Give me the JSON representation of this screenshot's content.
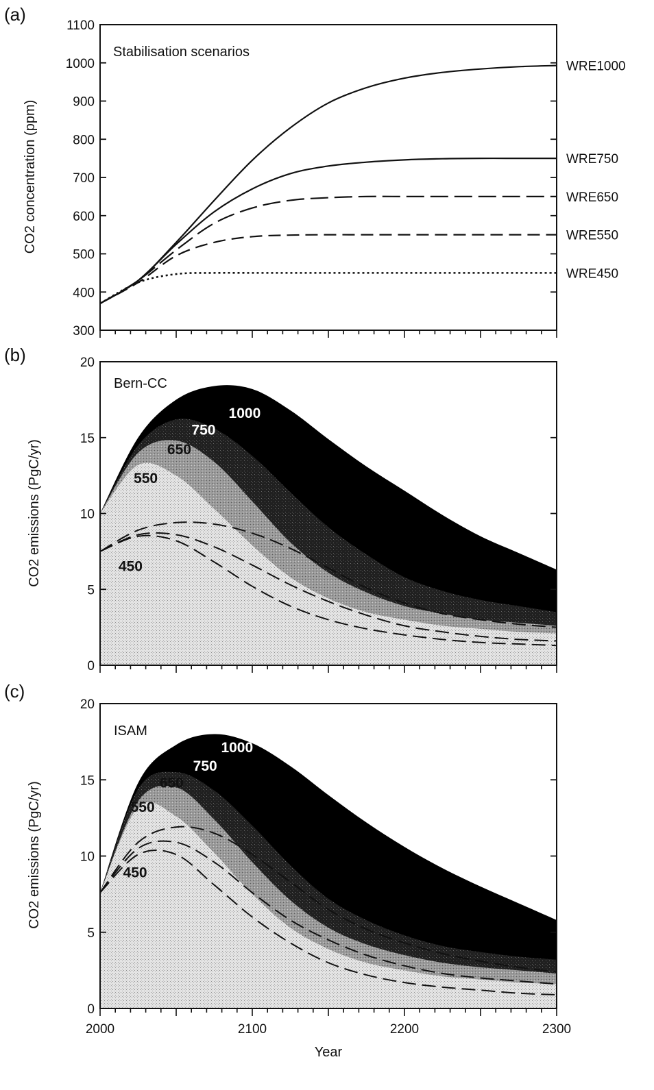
{
  "chart_data": [
    {
      "id": "a",
      "type": "line",
      "panel_label": "(a)",
      "inner_label": "Stabilisation scenarios",
      "title": "",
      "ylabel": "CO2 concentration (ppm)",
      "xlabel": "",
      "xlim": [
        2000,
        2300
      ],
      "ylim": [
        300,
        1100
      ],
      "yticks": [
        300,
        400,
        500,
        600,
        700,
        800,
        900,
        1000,
        1100
      ],
      "xticks": [
        2000,
        2100,
        2200,
        2300
      ],
      "grid": false,
      "legend": "none",
      "x": [
        2000,
        2025,
        2050,
        2075,
        2100,
        2125,
        2150,
        2175,
        2200,
        2225,
        2250,
        2275,
        2300
      ],
      "series": [
        {
          "name": "WRE1000",
          "style": "solid",
          "values": [
            370,
            430,
            530,
            640,
            745,
            830,
            895,
            935,
            960,
            975,
            984,
            990,
            993
          ]
        },
        {
          "name": "WRE750",
          "style": "solid",
          "values": [
            370,
            430,
            525,
            610,
            670,
            710,
            730,
            740,
            746,
            749,
            750,
            750,
            750
          ]
        },
        {
          "name": "WRE650",
          "style": "long-dash",
          "values": [
            370,
            430,
            510,
            580,
            620,
            640,
            647,
            650,
            650,
            650,
            650,
            650,
            650
          ]
        },
        {
          "name": "WRE550",
          "style": "medium-dash",
          "values": [
            370,
            425,
            495,
            530,
            545,
            549,
            550,
            550,
            550,
            550,
            550,
            550,
            550
          ]
        },
        {
          "name": "WRE450",
          "style": "dotted",
          "values": [
            370,
            425,
            447,
            450,
            450,
            450,
            450,
            450,
            450,
            450,
            450,
            450,
            450
          ]
        }
      ]
    },
    {
      "id": "b",
      "type": "area",
      "panel_label": "(b)",
      "inner_label": "Bern-CC",
      "title": "",
      "ylabel": "CO2 emissions (PgC/yr)",
      "xlabel": "",
      "xlim": [
        2000,
        2300
      ],
      "ylim": [
        0,
        20
      ],
      "yticks": [
        0,
        5,
        10,
        15,
        20
      ],
      "xticks": [
        2000,
        2100,
        2200,
        2300
      ],
      "grid": false,
      "legend": "none",
      "x": [
        2000,
        2025,
        2050,
        2075,
        2100,
        2125,
        2150,
        2175,
        2200,
        2225,
        2250,
        2275,
        2300
      ],
      "bands": [
        {
          "name": "1000",
          "color": "#000000",
          "upper": [
            10,
            15,
            17.5,
            18.4,
            18.2,
            16.8,
            14.9,
            13.1,
            11.5,
            9.9,
            8.5,
            7.4,
            6.3
          ]
        },
        {
          "name": "750",
          "color": "#2e2e2e",
          "upper": [
            10,
            14.5,
            16.2,
            15.6,
            13.8,
            11.4,
            9.1,
            7.3,
            5.8,
            4.9,
            4.3,
            3.9,
            3.5
          ]
        },
        {
          "name": "650",
          "color": "#8a8a8a",
          "upper": [
            10,
            14,
            14.8,
            13.4,
            10.8,
            8.1,
            6.1,
            4.8,
            3.9,
            3.4,
            3.0,
            2.8,
            2.6
          ]
        },
        {
          "name": "550",
          "color": "#c6c6c6",
          "upper": [
            10,
            13.2,
            12.5,
            10.3,
            7.9,
            5.8,
            4.4,
            3.5,
            3.0,
            2.6,
            2.4,
            2.2,
            2.1
          ]
        }
      ],
      "dashed_lines": [
        {
          "name": "",
          "values": [
            7.5,
            8.9,
            9.4,
            9.3,
            8.7,
            7.7,
            6.4,
            5.1,
            4.1,
            3.4,
            3.0,
            2.7,
            2.5
          ]
        },
        {
          "name": "",
          "values": [
            7.5,
            8.6,
            8.6,
            7.8,
            6.6,
            5.3,
            4.2,
            3.3,
            2.6,
            2.2,
            1.9,
            1.7,
            1.6
          ]
        },
        {
          "name": "",
          "values": [
            7.5,
            8.5,
            8.2,
            6.8,
            5.2,
            3.9,
            3.0,
            2.4,
            2.0,
            1.7,
            1.5,
            1.4,
            1.3
          ]
        }
      ],
      "band_labels": [
        {
          "text": "1000",
          "x": 2095,
          "y": 16.3,
          "color": "#ffffff"
        },
        {
          "text": "750",
          "x": 2068,
          "y": 15.2,
          "color": "#ffffff"
        },
        {
          "text": "650",
          "x": 2052,
          "y": 13.9,
          "color": "#111111"
        },
        {
          "text": "550",
          "x": 2030,
          "y": 12.0,
          "color": "#111111"
        },
        {
          "text": "450",
          "x": 2020,
          "y": 6.2,
          "color": "#111111"
        }
      ]
    },
    {
      "id": "c",
      "type": "area",
      "panel_label": "(c)",
      "inner_label": "ISAM",
      "title": "",
      "ylabel": "CO2 emissions (PgC/yr)",
      "xlabel": "Year",
      "xlim": [
        2000,
        2300
      ],
      "ylim": [
        0,
        20
      ],
      "yticks": [
        0,
        5,
        10,
        15,
        20
      ],
      "xticks": [
        2000,
        2100,
        2200,
        2300
      ],
      "grid": false,
      "legend": "none",
      "x": [
        2000,
        2025,
        2050,
        2075,
        2100,
        2125,
        2150,
        2175,
        2200,
        2225,
        2250,
        2275,
        2300
      ],
      "bands": [
        {
          "name": "1000",
          "color": "#000000",
          "upper": [
            7.6,
            14.8,
            17.3,
            18.0,
            17.4,
            15.9,
            14.0,
            12.2,
            10.6,
            9.2,
            8.0,
            6.9,
            5.8
          ]
        },
        {
          "name": "750",
          "color": "#2e2e2e",
          "upper": [
            7.6,
            14.4,
            15.5,
            14.3,
            12.0,
            9.4,
            7.2,
            5.8,
            4.8,
            4.1,
            3.7,
            3.4,
            3.2
          ]
        },
        {
          "name": "650",
          "color": "#8a8a8a",
          "upper": [
            7.6,
            13.6,
            14.5,
            12.4,
            9.6,
            7.1,
            5.3,
            4.2,
            3.5,
            3.0,
            2.7,
            2.5,
            2.3
          ]
        },
        {
          "name": "550",
          "color": "#c6c6c6",
          "upper": [
            7.6,
            13.2,
            12.6,
            10.2,
            7.5,
            5.3,
            3.9,
            3.0,
            2.5,
            2.1,
            1.9,
            1.7,
            1.6
          ]
        }
      ],
      "dashed_lines": [
        {
          "name": "",
          "values": [
            7.6,
            10.9,
            11.9,
            11.5,
            10.1,
            8.3,
            6.5,
            5.2,
            4.3,
            3.6,
            3.1,
            2.7,
            2.4
          ]
        },
        {
          "name": "",
          "values": [
            7.6,
            10.5,
            10.9,
            9.6,
            7.6,
            5.8,
            4.5,
            3.5,
            2.8,
            2.3,
            2.0,
            1.8,
            1.6
          ]
        },
        {
          "name": "",
          "values": [
            7.6,
            10.1,
            10.1,
            8.1,
            6.0,
            4.3,
            3.0,
            2.2,
            1.7,
            1.4,
            1.2,
            1.0,
            0.9
          ]
        }
      ],
      "band_labels": [
        {
          "text": "1000",
          "x": 2090,
          "y": 16.8,
          "color": "#ffffff"
        },
        {
          "text": "750",
          "x": 2069,
          "y": 15.6,
          "color": "#ffffff"
        },
        {
          "text": "650",
          "x": 2047,
          "y": 14.5,
          "color": "#111111"
        },
        {
          "text": "550",
          "x": 2028,
          "y": 12.9,
          "color": "#111111"
        },
        {
          "text": "450",
          "x": 2023,
          "y": 8.6,
          "color": "#111111"
        }
      ]
    }
  ]
}
